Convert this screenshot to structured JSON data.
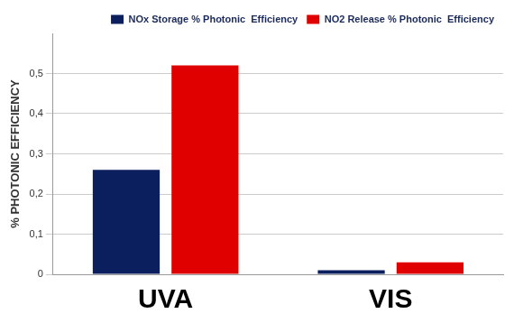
{
  "chart_data": {
    "type": "bar",
    "y_label": "% PHOTONIC EFFICIENCY",
    "categories": [
      "UVA",
      "VIS"
    ],
    "series": [
      {
        "name": "NOx Storage % Photonic  Efficiency",
        "color": "#0b1f5e",
        "values": [
          0.26,
          0.01
        ]
      },
      {
        "name": "NO2 Release % Photonic  Efficiency",
        "color": "#e00000",
        "values": [
          0.52,
          0.03
        ]
      }
    ],
    "ylim": [
      0,
      0.6
    ],
    "yticks": [
      0,
      {
        "value": 0.1,
        "label": "0,1"
      },
      {
        "value": 0.2,
        "label": "0,2"
      },
      {
        "value": 0.3,
        "label": "0,3"
      },
      {
        "value": 0.4,
        "label": "0,4"
      },
      {
        "value": 0.5,
        "label": "0,5"
      }
    ],
    "grid": true,
    "legend": "top-right"
  }
}
